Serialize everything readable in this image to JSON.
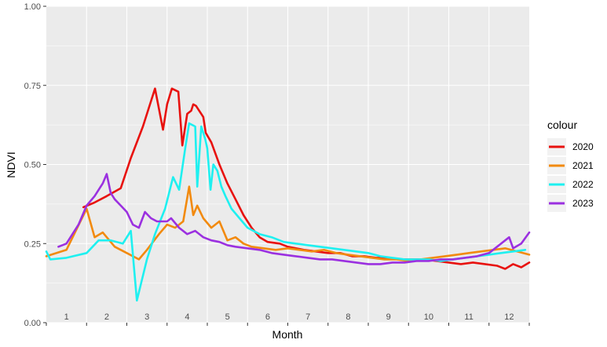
{
  "chart_data": {
    "type": "line",
    "xlabel": "Month",
    "ylabel": "NDVI",
    "ylim": [
      0,
      1
    ],
    "xlim": [
      0,
      12
    ],
    "y_ticks": [
      "0.00",
      "0.25",
      "0.50",
      "0.75",
      "1.00"
    ],
    "x_tick_labels": [
      "1",
      "2",
      "3",
      "4",
      "5",
      "6",
      "7",
      "8",
      "9",
      "10",
      "11",
      "12"
    ],
    "grid": true,
    "legend": {
      "title": "colour",
      "position": "right"
    },
    "series": [
      {
        "name": "2020",
        "color": "#e8120f",
        "x": [
          0.92,
          1.2,
          1.5,
          1.85,
          2.1,
          2.4,
          2.7,
          2.9,
          3.0,
          3.12,
          3.28,
          3.38,
          3.5,
          3.6,
          3.65,
          3.72,
          3.9,
          3.96,
          4.1,
          4.3,
          4.5,
          4.7,
          4.9,
          5.1,
          5.3,
          5.5,
          5.8,
          6.0,
          6.2,
          6.4,
          6.7,
          7.0,
          7.3,
          7.6,
          7.9,
          8.2,
          8.5,
          8.8,
          9.1,
          9.4,
          9.7,
          10.0,
          10.3,
          10.6,
          10.9,
          11.2,
          11.4,
          11.6,
          11.8,
          12.0
        ],
        "y": [
          0.365,
          0.38,
          0.4,
          0.425,
          0.52,
          0.62,
          0.74,
          0.61,
          0.69,
          0.74,
          0.73,
          0.56,
          0.66,
          0.67,
          0.69,
          0.685,
          0.65,
          0.6,
          0.57,
          0.5,
          0.44,
          0.39,
          0.34,
          0.3,
          0.27,
          0.255,
          0.25,
          0.24,
          0.235,
          0.23,
          0.225,
          0.22,
          0.22,
          0.21,
          0.21,
          0.205,
          0.205,
          0.2,
          0.2,
          0.2,
          0.195,
          0.19,
          0.185,
          0.19,
          0.185,
          0.18,
          0.17,
          0.185,
          0.175,
          0.19
        ]
      },
      {
        "name": "2021",
        "color": "#f28a0e",
        "x": [
          0.0,
          0.5,
          1.0,
          1.2,
          1.4,
          1.7,
          2.0,
          2.3,
          2.5,
          2.8,
          3.0,
          3.2,
          3.4,
          3.55,
          3.65,
          3.75,
          3.9,
          4.1,
          4.3,
          4.5,
          4.7,
          4.9,
          5.1,
          5.4,
          5.7,
          6.0,
          6.3,
          6.6,
          6.9,
          7.2,
          7.5,
          7.8,
          8.1,
          8.4,
          8.7,
          9.0,
          9.3,
          9.6,
          9.9,
          10.2,
          10.5,
          10.8,
          11.1,
          11.4,
          11.7,
          12.0
        ],
        "y": [
          0.21,
          0.23,
          0.36,
          0.27,
          0.285,
          0.24,
          0.22,
          0.2,
          0.23,
          0.28,
          0.31,
          0.3,
          0.32,
          0.43,
          0.34,
          0.37,
          0.33,
          0.3,
          0.32,
          0.26,
          0.27,
          0.25,
          0.24,
          0.235,
          0.23,
          0.235,
          0.23,
          0.225,
          0.23,
          0.22,
          0.215,
          0.21,
          0.205,
          0.2,
          0.2,
          0.195,
          0.2,
          0.205,
          0.21,
          0.215,
          0.22,
          0.225,
          0.23,
          0.235,
          0.225,
          0.215
        ]
      },
      {
        "name": "2022",
        "color": "#1ef0f0",
        "x": [
          0.0,
          0.1,
          0.5,
          1.0,
          1.3,
          1.6,
          1.9,
          2.1,
          2.25,
          2.5,
          2.7,
          2.95,
          3.15,
          3.3,
          3.45,
          3.55,
          3.7,
          3.75,
          3.85,
          3.95,
          4.0,
          4.08,
          4.15,
          4.25,
          4.35,
          4.45,
          4.6,
          4.8,
          5.0,
          5.3,
          5.6,
          5.9,
          6.2,
          6.5,
          6.8,
          7.1,
          7.4,
          7.7,
          8.0,
          8.3,
          8.6,
          8.9,
          9.2,
          9.5,
          9.8,
          10.1,
          10.4,
          10.7,
          11.0,
          11.3,
          11.6,
          11.9
        ],
        "y": [
          0.225,
          0.2,
          0.205,
          0.22,
          0.26,
          0.26,
          0.25,
          0.29,
          0.07,
          0.2,
          0.28,
          0.36,
          0.46,
          0.42,
          0.55,
          0.63,
          0.62,
          0.43,
          0.62,
          0.58,
          0.55,
          0.42,
          0.5,
          0.48,
          0.43,
          0.4,
          0.36,
          0.33,
          0.3,
          0.28,
          0.27,
          0.255,
          0.25,
          0.245,
          0.24,
          0.235,
          0.23,
          0.225,
          0.22,
          0.21,
          0.205,
          0.2,
          0.2,
          0.2,
          0.195,
          0.2,
          0.205,
          0.21,
          0.215,
          0.22,
          0.225,
          0.23
        ]
      },
      {
        "name": "2023",
        "color": "#9b30e0",
        "x": [
          0.3,
          0.5,
          0.8,
          1.0,
          1.2,
          1.4,
          1.5,
          1.6,
          1.7,
          1.85,
          2.0,
          2.15,
          2.3,
          2.45,
          2.6,
          2.75,
          2.9,
          3.0,
          3.1,
          3.3,
          3.5,
          3.7,
          3.9,
          4.1,
          4.3,
          4.5,
          4.7,
          5.0,
          5.3,
          5.6,
          5.9,
          6.2,
          6.5,
          6.8,
          7.1,
          7.4,
          7.7,
          8.0,
          8.3,
          8.6,
          8.9,
          9.2,
          9.5,
          9.8,
          10.1,
          10.4,
          10.7,
          11.0,
          11.2,
          11.4,
          11.5,
          11.6,
          11.8,
          12.0
        ],
        "y": [
          0.24,
          0.25,
          0.31,
          0.37,
          0.4,
          0.44,
          0.47,
          0.41,
          0.39,
          0.37,
          0.35,
          0.31,
          0.3,
          0.35,
          0.33,
          0.32,
          0.32,
          0.32,
          0.33,
          0.3,
          0.28,
          0.29,
          0.27,
          0.26,
          0.255,
          0.245,
          0.24,
          0.235,
          0.23,
          0.22,
          0.215,
          0.21,
          0.205,
          0.2,
          0.2,
          0.195,
          0.19,
          0.185,
          0.185,
          0.19,
          0.19,
          0.195,
          0.195,
          0.2,
          0.2,
          0.205,
          0.21,
          0.22,
          0.24,
          0.26,
          0.27,
          0.235,
          0.25,
          0.285
        ]
      }
    ]
  }
}
